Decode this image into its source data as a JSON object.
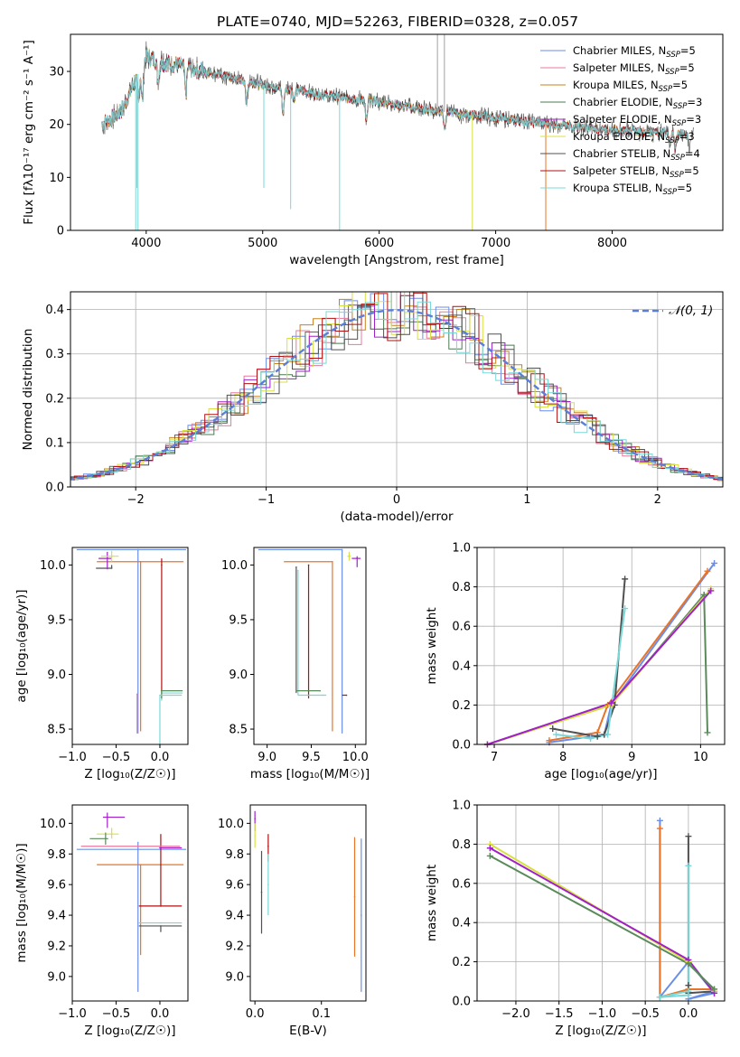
{
  "figure": {
    "colors": [
      "#6b8ee8",
      "#e8789e",
      "#c8801e",
      "#4a7a52",
      "#a020c8",
      "#d8e040",
      "#505050",
      "#b01010",
      "#78d8d8"
    ],
    "extra_colors": {
      "orange": "#e8742a",
      "darkgreen": "#5a8a5a",
      "gaussian": "#5b7fd8"
    }
  },
  "chart_data": [
    {
      "id": "spectrum",
      "type": "line",
      "title": "PLATE=0740, MJD=52263, FIBERID=0328, z=0.057",
      "xlabel": "wavelength [Angstrom, rest frame]",
      "ylabel": "Flux [fλ10⁻¹⁷ erg cm⁻² s⁻¹ A⁻¹]",
      "xlim": [
        3350,
        8950
      ],
      "ylim": [
        0,
        37
      ],
      "xticks": [
        4000,
        5000,
        6000,
        7000,
        8000
      ],
      "yticks": [
        0,
        10,
        20,
        30
      ],
      "legend_position": "top-right",
      "series": [
        {
          "name": "Chabrier MILES, N",
          "sub": "SSP",
          "suffix": "=5",
          "color": "#6b8ee8"
        },
        {
          "name": "Salpeter MILES, N",
          "sub": "SSP",
          "suffix": "=5",
          "color": "#e8789e"
        },
        {
          "name": "Kroupa MILES, N",
          "sub": "SSP",
          "suffix": "=5",
          "color": "#c8801e"
        },
        {
          "name": "Chabrier ELODIE, N",
          "sub": "SSP",
          "suffix": "=3",
          "color": "#4a7a52"
        },
        {
          "name": "Salpeter ELODIE, N",
          "sub": "SSP",
          "suffix": "=3",
          "color": "#a020c8"
        },
        {
          "name": "Kroupa ELODIE, N",
          "sub": "SSP",
          "suffix": "=3",
          "color": "#d8e040"
        },
        {
          "name": "Chabrier STELIB, N",
          "sub": "SSP",
          "suffix": "=4",
          "color": "#505050"
        },
        {
          "name": "Salpeter STELIB, N",
          "sub": "SSP",
          "suffix": "=5",
          "color": "#b01010"
        },
        {
          "name": "Kroupa STELIB, N",
          "sub": "SSP",
          "suffix": "=5",
          "color": "#78d8d8"
        }
      ],
      "continuum": {
        "x": [
          3620,
          3700,
          3800,
          3900,
          4000,
          4100,
          4300,
          4500,
          4700,
          4900,
          5100,
          5300,
          5500,
          5700,
          5900,
          6100,
          6300,
          6500,
          6700,
          6900,
          7100,
          7300,
          7500,
          7700,
          7900,
          8100,
          8300,
          8500,
          8700
        ],
        "y": [
          20,
          21,
          23,
          28,
          33,
          32,
          31,
          30,
          29,
          28,
          27,
          26.5,
          25.5,
          25,
          24.5,
          24,
          23,
          22.5,
          22,
          21.5,
          21,
          20.5,
          20,
          19.5,
          19,
          19,
          18.5,
          18.5,
          18
        ]
      },
      "absorption_lines": [
        {
          "x": 3933,
          "depth": 6
        },
        {
          "x": 3968,
          "depth": 7
        },
        {
          "x": 4102,
          "depth": 4
        },
        {
          "x": 4340,
          "depth": 5
        },
        {
          "x": 4861,
          "depth": 4
        },
        {
          "x": 5175,
          "depth": 5
        },
        {
          "x": 5270,
          "depth": 2
        },
        {
          "x": 5890,
          "depth": 4
        },
        {
          "x": 6563,
          "depth": 3
        },
        {
          "x": 8498,
          "depth": 2
        },
        {
          "x": 8542,
          "depth": 3
        },
        {
          "x": 8662,
          "depth": 3
        }
      ],
      "spikes": [
        {
          "x": 3910,
          "y": 0
        },
        {
          "x": 3930,
          "y": 0
        },
        {
          "x": 3920,
          "y": 8
        },
        {
          "x": 5660,
          "y": 0
        },
        {
          "x": 6500,
          "y": 37
        },
        {
          "x": 6560,
          "y": 37
        },
        {
          "x": 6800,
          "y": 0
        },
        {
          "x": 7430,
          "y": 0
        },
        {
          "x": 5010,
          "y": 8
        },
        {
          "x": 5240,
          "y": 4
        }
      ]
    },
    {
      "id": "residuals",
      "type": "line",
      "xlabel": "(data-model)/error",
      "ylabel": "Normed distribution",
      "xlim": [
        -2.5,
        2.5
      ],
      "ylim": [
        0,
        0.44
      ],
      "xticks": [
        -2,
        -1,
        0,
        1,
        2
      ],
      "yticks": [
        0.0,
        0.1,
        0.2,
        0.3,
        0.4
      ],
      "grid": true,
      "legend_position": "top-right",
      "gaussian": {
        "label": "𝒩(0, 1)",
        "mean": 0,
        "sigma": 1,
        "color": "#5b7fd8"
      },
      "bin_width": 0.1
    },
    {
      "id": "age-vs-Z",
      "type": "scatter",
      "xlabel": "Z [log₁₀(Z/Z☉)]",
      "ylabel": "age  [log₁₀(age/yr)]",
      "xlim": [
        -1.0,
        0.32
      ],
      "ylim": [
        8.36,
        10.16
      ],
      "xticks": [
        -1.0,
        -0.5,
        0.0
      ],
      "yticks": [
        8.5,
        9.0,
        9.5,
        10.0
      ],
      "points": [
        {
          "x": -0.25,
          "y": 10.14,
          "xerr": [
            0.7,
            0.55
          ],
          "yerr": [
            1.68,
            0
          ],
          "color": "#6b8ee8"
        },
        {
          "x": -0.22,
          "y": 10.03,
          "xerr": [
            0.5,
            0.49
          ],
          "yerr": [
            1.55,
            0
          ],
          "color": "#e8742a"
        },
        {
          "x": 0.02,
          "y": 10.0,
          "xerr": [
            0.0,
            0.0
          ],
          "yerr": [
            1.22,
            0.06
          ],
          "color": "#b01010"
        },
        {
          "x": -0.55,
          "y": 9.97,
          "xerr": [
            0.18,
            0.0
          ],
          "yerr": [
            0,
            0.03
          ],
          "color": "#505050"
        },
        {
          "x": -0.6,
          "y": 10.06,
          "xerr": [
            0.1,
            0.05
          ],
          "yerr": [
            0.1,
            0.06
          ],
          "color": "#a020c8"
        },
        {
          "x": -0.55,
          "y": 10.08,
          "xerr": [
            0.12,
            0.08
          ],
          "yerr": [
            0.05,
            0.05
          ],
          "color": "#d8e040"
        },
        {
          "x": 0.02,
          "y": 8.83,
          "xerr": [
            0.01,
            0.24
          ],
          "yerr": [
            0.07,
            0.0
          ],
          "color": "#78d8d8"
        },
        {
          "x": 0.02,
          "y": 8.85,
          "xerr": [
            0.01,
            0.24
          ],
          "yerr": [
            0.07,
            0.0
          ],
          "color": "#5a8a5a"
        },
        {
          "x": 0.0,
          "y": 8.81,
          "xerr": [
            0.0,
            0.25
          ],
          "yerr": [
            1.16,
            0.0
          ],
          "color": "#78d8d8"
        },
        {
          "x": -0.26,
          "y": 8.82,
          "xerr": [
            0.0,
            0.0
          ],
          "yerr": [
            0.36,
            0.0
          ],
          "color": "#e8789e"
        }
      ]
    },
    {
      "id": "age-vs-mass",
      "type": "scatter",
      "xlabel": "mass [log₁₀(M/M☉)]",
      "ylabel": "",
      "xlim": [
        8.85,
        10.12
      ],
      "ylim": [
        8.36,
        10.16
      ],
      "xticks": [
        9.0,
        9.5,
        10.0
      ],
      "yticks": [
        8.5,
        9.0,
        9.5,
        10.0
      ],
      "points": [
        {
          "x": 9.85,
          "y": 10.14,
          "xerr": [
            0.95,
            0.0
          ],
          "yerr": [
            1.68,
            0
          ],
          "color": "#6b8ee8"
        },
        {
          "x": 9.74,
          "y": 10.03,
          "xerr": [
            0.55,
            0.0
          ],
          "yerr": [
            1.55,
            0
          ],
          "color": "#e8742a"
        },
        {
          "x": 9.47,
          "y": 10.0,
          "xerr": [
            0.0,
            0.0
          ],
          "yerr": [
            1.22,
            0
          ],
          "color": "#b01010"
        },
        {
          "x": 9.33,
          "y": 9.98,
          "xerr": [
            0.0,
            0.0
          ],
          "yerr": [
            1.15,
            0.0
          ],
          "color": "#505050"
        },
        {
          "x": 9.35,
          "y": 9.95,
          "xerr": [
            0.0,
            0.0
          ],
          "yerr": [
            1.14,
            0.0
          ],
          "color": "#78d8d8"
        },
        {
          "x": 10.02,
          "y": 10.06,
          "xerr": [
            0.06,
            0.04
          ],
          "yerr": [
            0.08,
            0.02
          ],
          "color": "#a020c8"
        },
        {
          "x": 9.93,
          "y": 10.08,
          "xerr": [
            0.02,
            0.02
          ],
          "yerr": [
            0.04,
            0.04
          ],
          "color": "#d8e040"
        },
        {
          "x": 9.6,
          "y": 8.85,
          "xerr": [
            0.27,
            0.0
          ],
          "yerr": [
            0,
            0
          ],
          "color": "#5a8a5a"
        },
        {
          "x": 9.63,
          "y": 8.81,
          "xerr": [
            0.28,
            0.04
          ],
          "yerr": [
            0,
            0
          ],
          "color": "#78d8d8"
        },
        {
          "x": 9.9,
          "y": 8.81,
          "xerr": [
            0.05,
            0.0
          ],
          "yerr": [
            0,
            0
          ],
          "color": "#b01010"
        }
      ]
    },
    {
      "id": "mass-weight-vs-age",
      "type": "line",
      "xlabel": "age  [log₁₀(age/yr)]",
      "ylabel": "mass weight",
      "xlim": [
        6.75,
        10.35
      ],
      "ylim": [
        0,
        1.0
      ],
      "xticks": [
        7,
        8,
        9,
        10
      ],
      "yticks": [
        0.0,
        0.2,
        0.4,
        0.6,
        0.8,
        1.0
      ],
      "grid": true,
      "series": [
        {
          "color": "#6b8ee8",
          "x": [
            7.8,
            8.4,
            8.6,
            8.7,
            10.2
          ],
          "y": [
            0.01,
            0.04,
            0.05,
            0.2,
            0.92
          ]
        },
        {
          "color": "#e8742a",
          "x": [
            7.8,
            8.5,
            8.65,
            10.1
          ],
          "y": [
            0.02,
            0.06,
            0.2,
            0.88
          ]
        },
        {
          "color": "#505050",
          "x": [
            7.85,
            8.5,
            8.6,
            8.75,
            8.9
          ],
          "y": [
            0.08,
            0.04,
            0.05,
            0.2,
            0.84
          ]
        },
        {
          "color": "#78d8d8",
          "x": [
            7.9,
            8.4,
            8.65,
            8.9
          ],
          "y": [
            0.05,
            0.03,
            0.05,
            0.69
          ]
        },
        {
          "color": "#5a8a5a",
          "x": [
            6.9,
            8.7,
            10.05,
            10.1
          ],
          "y": [
            0.0,
            0.2,
            0.76,
            0.06
          ]
        },
        {
          "color": "#d8e040",
          "x": [
            6.9,
            8.7,
            10.15
          ],
          "y": [
            0.0,
            0.2,
            0.79
          ]
        },
        {
          "color": "#a020c8",
          "x": [
            6.9,
            8.7,
            10.15
          ],
          "y": [
            0.0,
            0.21,
            0.78
          ]
        }
      ]
    },
    {
      "id": "mass-vs-Z",
      "type": "scatter",
      "xlabel": "Z [log₁₀(Z/Z☉)]",
      "ylabel": "mass [log₁₀(M/M☉)]",
      "xlim": [
        -1.0,
        0.32
      ],
      "ylim": [
        8.84,
        10.12
      ],
      "xticks": [
        -1.0,
        -0.5,
        0.0
      ],
      "yticks": [
        9.0,
        9.2,
        9.4,
        9.6,
        9.8,
        10.0
      ],
      "points": [
        {
          "x": -0.25,
          "y": 9.83,
          "xerr": [
            0.7,
            0.55
          ],
          "yerr": [
            0.93,
            0.05
          ],
          "color": "#6b8ee8"
        },
        {
          "x": -0.22,
          "y": 9.73,
          "xerr": [
            0.5,
            0.49
          ],
          "yerr": [
            0.59,
            0.0
          ],
          "color": "#e8742a"
        },
        {
          "x": 0.01,
          "y": 9.46,
          "xerr": [
            0.25,
            0.24
          ],
          "yerr": [
            0.0,
            0.47
          ],
          "color": "#b01010"
        },
        {
          "x": 0.01,
          "y": 9.33,
          "xerr": [
            0.25,
            0.24
          ],
          "yerr": [
            0.04,
            0.0
          ],
          "color": "#505050"
        },
        {
          "x": 0.01,
          "y": 9.35,
          "xerr": [
            0.25,
            0.24
          ],
          "yerr": [
            0.0,
            0.0
          ],
          "color": "#78d8d8"
        },
        {
          "x": -0.6,
          "y": 10.04,
          "xerr": [
            0.05,
            0.2
          ],
          "yerr": [
            0.07,
            0.03
          ],
          "color": "#a020c8"
        },
        {
          "x": -0.55,
          "y": 9.93,
          "xerr": [
            0.17,
            0.08
          ],
          "yerr": [
            0.03,
            0.04
          ],
          "color": "#d8e040"
        },
        {
          "x": -0.62,
          "y": 9.9,
          "xerr": [
            0.18,
            0.03
          ],
          "yerr": [
            0.04,
            0.04
          ],
          "color": "#5a8a5a"
        },
        {
          "x": 0.0,
          "y": 9.84,
          "xerr": [
            0.0,
            0.25
          ],
          "yerr": [
            0.0,
            0.0
          ],
          "color": "#a020c8"
        },
        {
          "x": -0.25,
          "y": 9.85,
          "xerr": [
            0.65,
            0.48
          ],
          "yerr": [
            0.0,
            0.0
          ],
          "color": "#e8789e"
        }
      ]
    },
    {
      "id": "mass-vs-EBV",
      "type": "scatter",
      "xlabel": "E(B-V)",
      "ylabel": "",
      "xlim": [
        -0.007,
        0.167
      ],
      "ylim": [
        8.84,
        10.12
      ],
      "xticks": [
        0.0,
        0.1
      ],
      "yticks": [
        9.0,
        9.2,
        9.4,
        9.6,
        9.8,
        10.0
      ],
      "points": [
        {
          "x": 0.0,
          "y": 10.03,
          "xerr": [
            0,
            0
          ],
          "yerr": [
            0.08,
            0.05
          ],
          "color": "#a020c8"
        },
        {
          "x": 0.0,
          "y": 9.92,
          "xerr": [
            0,
            0
          ],
          "yerr": [
            0.08,
            0.08
          ],
          "color": "#d8e040"
        },
        {
          "x": 0.01,
          "y": 9.55,
          "xerr": [
            0,
            0
          ],
          "yerr": [
            0.27,
            0.27
          ],
          "color": "#505050"
        },
        {
          "x": 0.02,
          "y": 9.85,
          "xerr": [
            0,
            0
          ],
          "yerr": [
            0.1,
            0.08
          ],
          "color": "#b01010"
        },
        {
          "x": 0.02,
          "y": 9.6,
          "xerr": [
            0,
            0
          ],
          "yerr": [
            0.2,
            0.2
          ],
          "color": "#78d8d8"
        },
        {
          "x": 0.15,
          "y": 9.52,
          "xerr": [
            0,
            0
          ],
          "yerr": [
            0.39,
            0.39
          ],
          "color": "#e8742a"
        },
        {
          "x": 0.16,
          "y": 9.4,
          "xerr": [
            0,
            0
          ],
          "yerr": [
            0.5,
            0.5
          ],
          "color": "#6b8ee8"
        }
      ]
    },
    {
      "id": "mass-weight-vs-Z",
      "type": "line",
      "xlabel": "Z [log₁₀(Z/Z☉)]",
      "ylabel": "mass weight",
      "xlim": [
        -2.45,
        0.42
      ],
      "ylim": [
        0,
        1.0
      ],
      "xticks": [
        -2.0,
        -1.5,
        -1.0,
        -0.5,
        0.0
      ],
      "yticks": [
        0.0,
        0.2,
        0.4,
        0.6,
        0.8,
        1.0
      ],
      "grid": true,
      "series": [
        {
          "color": "#6b8ee8",
          "x": [
            -0.33,
            -0.33,
            0.0,
            0.3,
            0.0,
            0.3
          ],
          "y": [
            0.92,
            0.02,
            0.2,
            0.04,
            0.01,
            0.05
          ]
        },
        {
          "color": "#e8742a",
          "x": [
            -0.33,
            -0.33,
            0.0,
            0.3
          ],
          "y": [
            0.88,
            0.02,
            0.06,
            0.06
          ]
        },
        {
          "color": "#505050",
          "x": [
            0.0,
            0.0,
            0.0,
            0.3
          ],
          "y": [
            0.84,
            0.08,
            0.04,
            0.05
          ]
        },
        {
          "color": "#78d8d8",
          "x": [
            0.0,
            0.0,
            -0.33,
            0.0
          ],
          "y": [
            0.69,
            0.05,
            0.02,
            0.03
          ]
        },
        {
          "color": "#d8e040",
          "x": [
            -2.3,
            0.0,
            0.3
          ],
          "y": [
            0.8,
            0.2,
            0.05
          ]
        },
        {
          "color": "#a020c8",
          "x": [
            -2.3,
            0.0,
            0.3
          ],
          "y": [
            0.78,
            0.21,
            0.04
          ]
        },
        {
          "color": "#5a8a5a",
          "x": [
            -2.3,
            0.0,
            0.3
          ],
          "y": [
            0.74,
            0.19,
            0.06
          ]
        }
      ]
    }
  ]
}
